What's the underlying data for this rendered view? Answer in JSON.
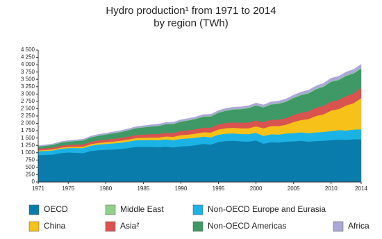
{
  "chart_data": {
    "type": "stacked_area",
    "title": "Hydro production¹ from 1971 to 2014",
    "subtitle": "by region (TWh)",
    "x": [
      1971,
      1972,
      1973,
      1974,
      1975,
      1976,
      1977,
      1978,
      1979,
      1980,
      1981,
      1982,
      1983,
      1984,
      1985,
      1986,
      1987,
      1988,
      1989,
      1990,
      1991,
      1992,
      1993,
      1994,
      1995,
      1996,
      1997,
      1998,
      1999,
      2000,
      2001,
      2002,
      2003,
      2004,
      2005,
      2006,
      2007,
      2008,
      2009,
      2010,
      2011,
      2012,
      2013,
      2014
    ],
    "xlim": [
      1971,
      2014
    ],
    "xticks": [
      1971,
      1975,
      1980,
      1985,
      1990,
      1995,
      2000,
      2005,
      2010,
      2014
    ],
    "ylim": [
      0,
      4500
    ],
    "yticks": [
      0,
      250,
      500,
      750,
      {
        "value": 1000,
        "label": "1 000"
      },
      {
        "value": 1250,
        "label": "1 250"
      },
      {
        "value": 1500,
        "label": "1 500"
      },
      {
        "value": 1750,
        "label": "1 750"
      },
      {
        "value": 2000,
        "label": "2 000"
      },
      {
        "value": 2250,
        "label": "2 250"
      },
      {
        "value": 2500,
        "label": "2 500"
      },
      {
        "value": 2750,
        "label": "2 750"
      },
      {
        "value": 3000,
        "label": "3 000"
      },
      {
        "value": 3250,
        "label": "3 250"
      },
      {
        "value": 3500,
        "label": "3 500"
      },
      {
        "value": 3750,
        "label": "3 750"
      },
      {
        "value": 4000,
        "label": "4 000"
      },
      {
        "value": 4250,
        "label": "4 250"
      },
      {
        "value": 4500,
        "label": "4 500"
      }
    ],
    "grid": false,
    "series": [
      {
        "name": "OECD",
        "color": "#0a7cab",
        "values": [
          920,
          930,
          940,
          990,
          1010,
          1000,
          990,
          1060,
          1090,
          1100,
          1110,
          1130,
          1160,
          1200,
          1200,
          1200,
          1190,
          1210,
          1180,
          1220,
          1230,
          1260,
          1300,
          1280,
          1370,
          1400,
          1410,
          1390,
          1380,
          1420,
          1310,
          1360,
          1350,
          1380,
          1390,
          1410,
          1380,
          1400,
          1410,
          1430,
          1450,
          1440,
          1460,
          1460
        ]
      },
      {
        "name": "Non-OECD Europe and Eurasia",
        "color": "#1bb3e6",
        "values": [
          130,
          135,
          140,
          145,
          150,
          160,
          170,
          180,
          190,
          200,
          210,
          215,
          220,
          225,
          230,
          235,
          240,
          245,
          250,
          255,
          260,
          255,
          250,
          245,
          245,
          250,
          250,
          250,
          255,
          260,
          265,
          270,
          270,
          275,
          280,
          285,
          290,
          295,
          300,
          310,
          320,
          320,
          330,
          340
        ]
      },
      {
        "name": "China",
        "color": "#f6c21a",
        "values": [
          30,
          32,
          35,
          38,
          40,
          45,
          48,
          52,
          55,
          58,
          62,
          66,
          70,
          75,
          80,
          85,
          90,
          100,
          115,
          125,
          130,
          140,
          150,
          165,
          180,
          185,
          190,
          195,
          200,
          220,
          260,
          280,
          290,
          300,
          380,
          420,
          480,
          560,
          600,
          700,
          720,
          850,
          900,
          1060
        ]
      },
      {
        "name": "Asia²",
        "color": "#d9534f",
        "values": [
          60,
          62,
          65,
          68,
          70,
          75,
          78,
          80,
          85,
          88,
          92,
          95,
          100,
          105,
          110,
          115,
          120,
          125,
          130,
          140,
          145,
          150,
          160,
          165,
          170,
          180,
          185,
          190,
          195,
          200,
          210,
          215,
          220,
          225,
          235,
          250,
          265,
          280,
          290,
          300,
          310,
          320,
          335,
          350
        ]
      },
      {
        "name": "Non-OECD Americas",
        "color": "#3f9967",
        "values": [
          70,
          80,
          90,
          100,
          110,
          120,
          135,
          150,
          160,
          175,
          190,
          200,
          215,
          230,
          245,
          260,
          275,
          290,
          305,
          320,
          335,
          350,
          370,
          385,
          400,
          420,
          440,
          460,
          490,
          510,
          500,
          520,
          540,
          560,
          580,
          600,
          610,
          630,
          650,
          680,
          680,
          690,
          680,
          660
        ]
      },
      {
        "name": "Middle East",
        "color": "#92cf8c",
        "values": [
          5,
          5,
          5,
          6,
          6,
          6,
          7,
          7,
          8,
          8,
          8,
          9,
          9,
          10,
          10,
          10,
          11,
          11,
          12,
          12,
          12,
          13,
          13,
          14,
          14,
          15,
          15,
          15,
          16,
          16,
          16,
          17,
          17,
          18,
          18,
          19,
          19,
          20,
          20,
          21,
          21,
          22,
          22,
          22
        ]
      },
      {
        "name": "Africa",
        "color": "#a9a8d6",
        "values": [
          25,
          27,
          28,
          30,
          31,
          32,
          34,
          35,
          37,
          38,
          40,
          41,
          42,
          44,
          45,
          46,
          48,
          49,
          50,
          52,
          54,
          55,
          57,
          58,
          60,
          62,
          63,
          65,
          66,
          68,
          70,
          72,
          74,
          76,
          80,
          84,
          88,
          92,
          96,
          100,
          104,
          108,
          114,
          120
        ]
      }
    ]
  }
}
